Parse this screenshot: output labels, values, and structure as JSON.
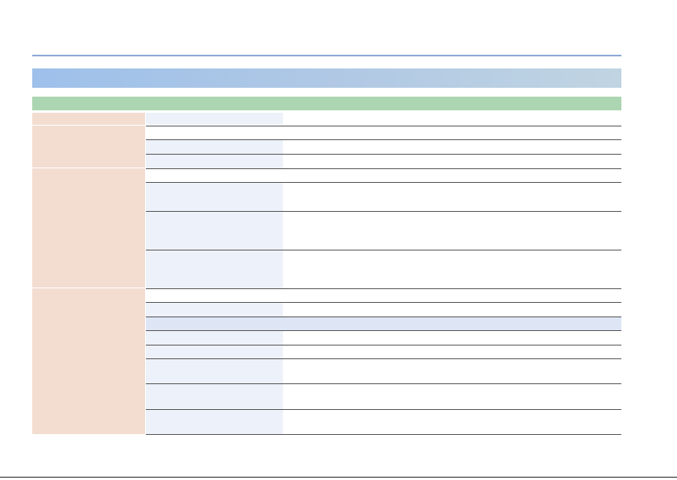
{
  "page": {
    "section_title": "",
    "subsection_title": ""
  },
  "table": {
    "columns": [
      "",
      "",
      ""
    ],
    "groups": [
      {
        "label": ""
      },
      {
        "label": ""
      },
      {
        "label": ""
      },
      {
        "label": ""
      }
    ]
  },
  "colors": {
    "section_header": "#9ec0ea",
    "subsection_header": "#acd5b1",
    "group_cell": "#f3ddd1",
    "param_cell": "#edf1f9",
    "band_row": "#dee6f6",
    "top_rule": "#8aa9d6"
  }
}
